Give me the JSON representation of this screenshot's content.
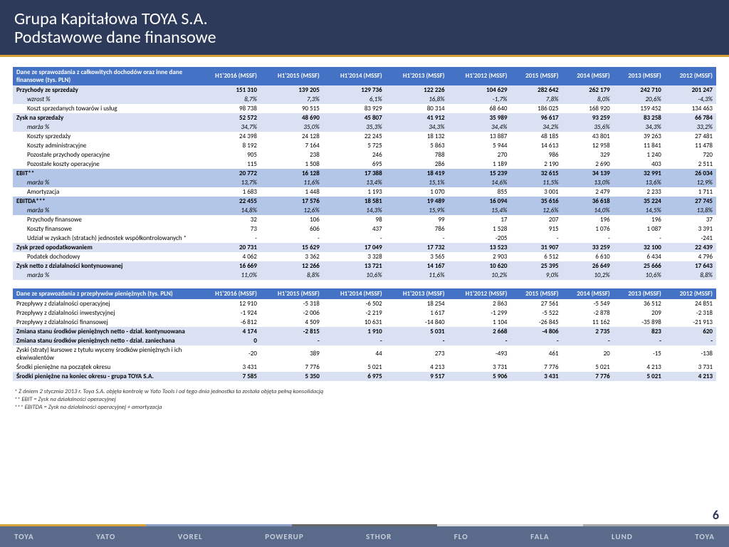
{
  "header": {
    "line1": "Grupa Kapitałowa TOYA S.A.",
    "line2": "Podstawowe dane finansowe"
  },
  "pageNumber": "6",
  "table1": {
    "title": "Dane ze sprawozdania z całkowitych dochodów oraz inne dane finansowe (tys. PLN)",
    "headers": [
      "H1'2016 (MSSF)",
      "H1'2015 (MSSF)",
      "H1'2014 (MSSF)",
      "H1'2013 (MSSF)",
      "H1'2012 (MSSF)",
      "2015 (MSSF)",
      "2014 (MSSF)",
      "2013 (MSSF)",
      "2012 (MSSF)"
    ],
    "rows": [
      {
        "label": "Przychody ze sprzedaży",
        "vals": [
          "151 310",
          "139 205",
          "129 736",
          "122 226",
          "104 629",
          "282 642",
          "262 179",
          "242 710",
          "201 247"
        ],
        "cls": "row-bold bg-light"
      },
      {
        "label": "wzrost %",
        "vals": [
          "8,7%",
          "7,3%",
          "6,1%",
          "16,8%",
          "-1,7%",
          "7,8%",
          "8,0%",
          "20,6%",
          "-4,3%"
        ],
        "cls": "row-italic row-indent bg-light"
      },
      {
        "label": "Koszt sprzedanych towarów i usług",
        "vals": [
          "98 738",
          "90 515",
          "83 929",
          "80 314",
          "68 640",
          "186 025",
          "168 920",
          "159 452",
          "134 463"
        ],
        "cls": "row-indent"
      },
      {
        "label": "Zysk na sprzedaży",
        "vals": [
          "52 572",
          "48 690",
          "45 807",
          "41 912",
          "35 989",
          "96 617",
          "93 259",
          "83 258",
          "66 784"
        ],
        "cls": "row-bold bg-light"
      },
      {
        "label": "marża %",
        "vals": [
          "34,7%",
          "35,0%",
          "35,3%",
          "34,3%",
          "34,4%",
          "34,2%",
          "35,6%",
          "34,3%",
          "33,2%"
        ],
        "cls": "row-italic row-indent bg-light"
      },
      {
        "label": "Koszty sprzedaży",
        "vals": [
          "24 398",
          "24 128",
          "22 245",
          "18 132",
          "13 887",
          "48 185",
          "43 801",
          "39 263",
          "27 481"
        ],
        "cls": "row-indent"
      },
      {
        "label": "Koszty administracyjne",
        "vals": [
          "8 192",
          "7 164",
          "5 725",
          "5 863",
          "5 944",
          "14 613",
          "12 958",
          "11 841",
          "11 478"
        ],
        "cls": "row-indent"
      },
      {
        "label": "Pozostałe przychody operacyjne",
        "vals": [
          "905",
          "238",
          "246",
          "788",
          "270",
          "986",
          "329",
          "1 240",
          "720"
        ],
        "cls": "row-indent"
      },
      {
        "label": "Pozostałe koszty operacyjne",
        "vals": [
          "115",
          "1 508",
          "695",
          "286",
          "1 189",
          "2 190",
          "2 690",
          "403",
          "2 511"
        ],
        "cls": "row-indent"
      },
      {
        "label": "EBIT**",
        "vals": [
          "20 772",
          "16 128",
          "17 388",
          "18 419",
          "15 239",
          "32 615",
          "34 139",
          "32 991",
          "26 034"
        ],
        "cls": "row-bold bg-med"
      },
      {
        "label": "marża %",
        "vals": [
          "13,7%",
          "11,6%",
          "13,4%",
          "15,1%",
          "14,6%",
          "11,5%",
          "13,0%",
          "13,6%",
          "12,9%"
        ],
        "cls": "row-italic row-indent bg-med"
      },
      {
        "label": "Amortyzacja",
        "vals": [
          "1 683",
          "1 448",
          "1 193",
          "1 070",
          "855",
          "3 001",
          "2 479",
          "2 233",
          "1 711"
        ],
        "cls": "row-indent"
      },
      {
        "label": "EBITDA***",
        "vals": [
          "22 455",
          "17 576",
          "18 581",
          "19 489",
          "16 094",
          "35 616",
          "36 618",
          "35 224",
          "27 745"
        ],
        "cls": "row-bold bg-med"
      },
      {
        "label": "marża %",
        "vals": [
          "14,8%",
          "12,6%",
          "14,3%",
          "15,9%",
          "15,4%",
          "12,6%",
          "14,0%",
          "14,5%",
          "13,8%"
        ],
        "cls": "row-italic row-indent bg-med"
      },
      {
        "label": "Przychody finansowe",
        "vals": [
          "32",
          "106",
          "98",
          "99",
          "17",
          "207",
          "196",
          "196",
          "37"
        ],
        "cls": "row-indent"
      },
      {
        "label": "Koszty finansowe",
        "vals": [
          "73",
          "606",
          "437",
          "786",
          "1 528",
          "915",
          "1 076",
          "1 087",
          "3 391"
        ],
        "cls": "row-indent"
      },
      {
        "label": "Udział w zyskach (stratach) jednostek współkontrolowanych *",
        "vals": [
          "-",
          "-",
          "-",
          "-",
          "-205",
          "-",
          "-",
          "-",
          "-241"
        ],
        "cls": "row-indent"
      },
      {
        "label": "Zysk przed opodatkowaniem",
        "vals": [
          "20 731",
          "15 629",
          "17 049",
          "17 732",
          "13 523",
          "31 907",
          "33 259",
          "32 100",
          "22 439"
        ],
        "cls": "row-bold bg-light"
      },
      {
        "label": "Podatek dochodowy",
        "vals": [
          "4 062",
          "3 362",
          "3 328",
          "3 565",
          "2 903",
          "6 512",
          "6 610",
          "6 434",
          "4 796"
        ],
        "cls": "row-indent"
      },
      {
        "label": "Zysk netto z działalności kontynuowanej",
        "vals": [
          "16 669",
          "12 266",
          "13 721",
          "14 167",
          "10 620",
          "25 395",
          "26 649",
          "25 666",
          "17 643"
        ],
        "cls": "row-bold bg-light"
      },
      {
        "label": "marża %",
        "vals": [
          "11,0%",
          "8,8%",
          "10,6%",
          "11,6%",
          "10,2%",
          "9,0%",
          "10,2%",
          "10,6%",
          "8,8%"
        ],
        "cls": "row-italic row-indent bg-light"
      }
    ]
  },
  "table2": {
    "title": "Dane ze sprawozdania z przepływów pieniężnych (tys. PLN)",
    "headers": [
      "H1'2016 (MSSF)",
      "H1'2015 (MSSF)",
      "H1'2014 (MSSF)",
      "H1'2013 (MSSF)",
      "H1'2012 (MSSF)",
      "2015 (MSSF)",
      "2014 (MSSF)",
      "2013 (MSSF)",
      "2012 (MSSF)"
    ],
    "rows": [
      {
        "label": "Przepływy z działalności operacyjnej",
        "vals": [
          "12 910",
          "-5 318",
          "-6 502",
          "18 254",
          "2 863",
          "27 561",
          "-5 549",
          "36 512",
          "24 851"
        ],
        "cls": ""
      },
      {
        "label": "Przepływy z działalności inwestycyjnej",
        "vals": [
          "-1 924",
          "-2 006",
          "-2 219",
          "1 617",
          "-1 299",
          "-5 522",
          "-2 878",
          "209",
          "-2 318"
        ],
        "cls": ""
      },
      {
        "label": "Przepływy z działalności finansowej",
        "vals": [
          "-6 812",
          "4 509",
          "10 631",
          "-14 840",
          "1 104",
          "-26 845",
          "11 162",
          "-35 898",
          "-21 913"
        ],
        "cls": ""
      },
      {
        "label": "Zmiana stanu środków pieniężnych netto - dział. kontynuowana",
        "vals": [
          "4 174",
          "-2 815",
          "1 910",
          "5 031",
          "2 668",
          "-4 806",
          "2 735",
          "823",
          "620"
        ],
        "cls": "row-bold bg-light"
      },
      {
        "label": "Zmiana stanu środków pieniężnych netto - dział. zaniechana",
        "vals": [
          "0",
          "-",
          "-",
          "-",
          "-",
          "-",
          "-",
          "-",
          "-"
        ],
        "cls": "row-bold bg-light"
      },
      {
        "label": "Zyski (straty) kursowe z tytułu wyceny środków pieniężnych i ich ekwiwalentów",
        "vals": [
          "-20",
          "389",
          "44",
          "273",
          "-493",
          "461",
          "20",
          "-15",
          "-138"
        ],
        "cls": ""
      },
      {
        "label": "Środki pieniężne na początek okresu",
        "vals": [
          "3 431",
          "7 776",
          "5 021",
          "4 213",
          "3 731",
          "7 776",
          "5 021",
          "4 213",
          "3 731"
        ],
        "cls": ""
      },
      {
        "label": "Środki pieniężne na koniec okresu - grupa TOYA S.A.",
        "vals": [
          "7 585",
          "5 350",
          "6 975",
          "9 517",
          "5 906",
          "3 431",
          "7 776",
          "5 021",
          "4 213"
        ],
        "cls": "row-bold bg-light"
      }
    ]
  },
  "footnotes": [
    "* Z dniem 2 stycznia 2013 r. Toya S.A. objęła kontrolę w Yato Tools i od tego dnia jednostka ta została objęta pełną konsolidacją",
    "** EBIT = Zysk na działalności operacyjnej",
    "*** EBITDA = Zysk na działalności operacyjnej + amortyzacja"
  ],
  "brands": [
    "TOYA",
    "YATO",
    "VOREL",
    "POWERUP",
    "STHOR",
    "FLO",
    "FALA",
    "LUND",
    "TOYA"
  ]
}
